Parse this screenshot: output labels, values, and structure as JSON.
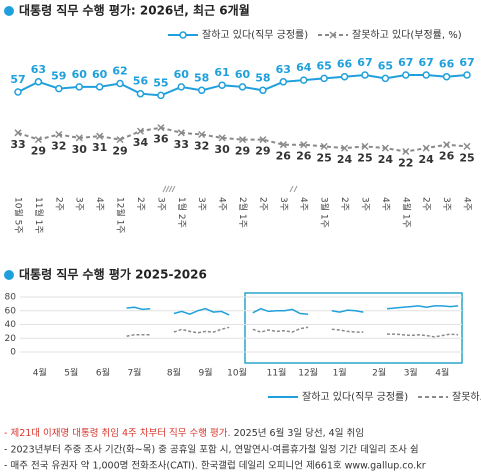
{
  "chart_data": [
    {
      "type": "line",
      "title": "대통령 직무 수행 평가: 2026년, 최근 6개월",
      "categories": [
        "10월 5주",
        "11월 1주",
        "2주",
        "3주",
        "4주",
        "12월 1주",
        "2주",
        "3주",
        "1월 2주",
        "3주",
        "4주",
        "2월 1주",
        "2주",
        "3주",
        "4주",
        "3월 1주",
        "2주",
        "3주",
        "4주",
        "4월 1주",
        "2주",
        "3주",
        "4주"
      ],
      "series": [
        {
          "name": "잘하고 있다(직무 긍정률)",
          "color": "#1fa0dc",
          "style": "solid",
          "values": [
            57,
            63,
            59,
            60,
            60,
            62,
            56,
            55,
            60,
            58,
            61,
            60,
            58,
            63,
            64,
            65,
            66,
            67,
            65,
            67,
            67,
            66,
            67
          ]
        },
        {
          "name": "잘못하고 있다(부정률, %)",
          "color": "#8a8a8a",
          "style": "dashed",
          "values": [
            33,
            29,
            32,
            30,
            31,
            29,
            34,
            36,
            33,
            32,
            30,
            29,
            29,
            26,
            26,
            25,
            24,
            25,
            24,
            22,
            24,
            26,
            25
          ]
        }
      ]
    },
    {
      "type": "line",
      "title": "대통령 직무 수행 평가 2025-2026",
      "categories": [
        null,
        null,
        "4월",
        null,
        null,
        null,
        "5월",
        null,
        null,
        null,
        "6월",
        null,
        null,
        null,
        "7월",
        null,
        null,
        null,
        null,
        "8월",
        null,
        null,
        null,
        "9월",
        null,
        null,
        null,
        "10월",
        null,
        null,
        null,
        null,
        "11월",
        null,
        null,
        null,
        "12월",
        null,
        null,
        null,
        "1월",
        null,
        null,
        null,
        null,
        "2월",
        null,
        null,
        null,
        "3월",
        null,
        null,
        null,
        "4월",
        null,
        null
      ],
      "ylim": [
        0,
        80
      ],
      "yticks": [
        0,
        20,
        40,
        60,
        80
      ],
      "grid": true,
      "series": [
        {
          "name": "잘하고 있다(직무 긍정률)",
          "color": "#1fa0dc",
          "style": "solid",
          "values": [
            null,
            null,
            null,
            null,
            null,
            null,
            null,
            null,
            null,
            null,
            null,
            null,
            null,
            64,
            65,
            62,
            63,
            null,
            null,
            56,
            59,
            55,
            60,
            63,
            58,
            59,
            54,
            null,
            null,
            57,
            63,
            59,
            60,
            60,
            62,
            56,
            55,
            null,
            null,
            60,
            58,
            61,
            60,
            58,
            null,
            null,
            63,
            64,
            65,
            66,
            67,
            65,
            67,
            67,
            66,
            67
          ]
        },
        {
          "name": "잘못하고 있다(부정률, %)",
          "color": "#8a8a8a",
          "style": "dashed",
          "values": [
            null,
            null,
            null,
            null,
            null,
            null,
            null,
            null,
            null,
            null,
            null,
            null,
            null,
            23,
            25,
            25,
            25,
            null,
            null,
            29,
            33,
            30,
            28,
            30,
            29,
            33,
            36,
            null,
            null,
            33,
            29,
            32,
            30,
            31,
            29,
            34,
            36,
            null,
            null,
            33,
            32,
            30,
            29,
            29,
            null,
            null,
            26,
            26,
            25,
            24,
            25,
            24,
            22,
            24,
            26,
            25
          ]
        }
      ]
    }
  ],
  "notes": [
    {
      "highlight": "- 제21대 이재명 대통령 취임 4주 차부터 직무 수행 평가.",
      "text": " 2025년 6월 3일 당선, 4일 취임"
    },
    {
      "text": "- 2023년부터 주중 조사 기간(화~목) 중 공휴일 포함 시, 연말연시·여름휴가철 일정 기간 데일리 조사 쉼"
    },
    {
      "text": "- 매주 전국 유권자 약 1,000명 전화조사(CATI). 한국갤럽 데일리 오피니언 제661호 www.gallup.co.kr"
    }
  ]
}
